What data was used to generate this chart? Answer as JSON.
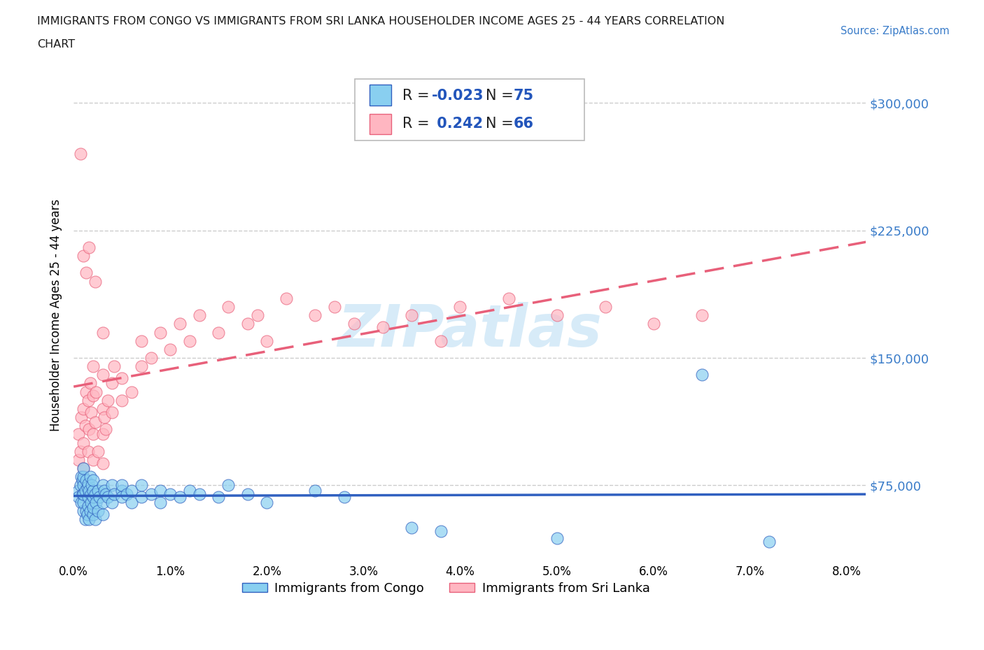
{
  "title_line1": "IMMIGRANTS FROM CONGO VS IMMIGRANTS FROM SRI LANKA HOUSEHOLDER INCOME AGES 25 - 44 YEARS CORRELATION",
  "title_line2": "CHART",
  "source": "Source: ZipAtlas.com",
  "ylabel": "Householder Income Ages 25 - 44 years",
  "xlim": [
    0.0,
    0.082
  ],
  "ylim": [
    30000,
    320000
  ],
  "yticks": [
    75000,
    150000,
    225000,
    300000
  ],
  "ytick_labels": [
    "$75,000",
    "$150,000",
    "$225,000",
    "$300,000"
  ],
  "xticks": [
    0.0,
    0.01,
    0.02,
    0.03,
    0.04,
    0.05,
    0.06,
    0.07,
    0.08
  ],
  "xtick_labels": [
    "0.0%",
    "1.0%",
    "2.0%",
    "3.0%",
    "4.0%",
    "5.0%",
    "6.0%",
    "7.0%",
    "8.0%"
  ],
  "color_congo": "#89CFF0",
  "color_srilanka": "#FFB6C1",
  "color_trend_congo": "#3060C0",
  "color_trend_srilanka": "#E8607A",
  "R_congo": -0.023,
  "N_congo": 75,
  "R_srilanka": 0.242,
  "N_srilanka": 66,
  "legend_label_congo": "Immigrants from Congo",
  "legend_label_srilanka": "Immigrants from Sri Lanka",
  "watermark": "ZIPatlas",
  "grid_color": "#cccccc",
  "congo_x": [
    0.0005,
    0.0005,
    0.0007,
    0.0008,
    0.0008,
    0.0009,
    0.0009,
    0.001,
    0.001,
    0.001,
    0.001,
    0.001,
    0.001,
    0.0012,
    0.0012,
    0.0013,
    0.0013,
    0.0014,
    0.0014,
    0.0015,
    0.0015,
    0.0015,
    0.0016,
    0.0016,
    0.0017,
    0.0017,
    0.0018,
    0.0018,
    0.0019,
    0.002,
    0.002,
    0.002,
    0.002,
    0.002,
    0.0022,
    0.0022,
    0.0023,
    0.0025,
    0.0025,
    0.0027,
    0.003,
    0.003,
    0.003,
    0.0032,
    0.0033,
    0.0035,
    0.004,
    0.004,
    0.0042,
    0.005,
    0.005,
    0.005,
    0.0055,
    0.006,
    0.006,
    0.007,
    0.007,
    0.008,
    0.009,
    0.009,
    0.01,
    0.011,
    0.012,
    0.013,
    0.015,
    0.016,
    0.018,
    0.02,
    0.025,
    0.028,
    0.035,
    0.038,
    0.05,
    0.065,
    0.072
  ],
  "congo_y": [
    72000,
    68000,
    75000,
    80000,
    65000,
    70000,
    78000,
    60000,
    65000,
    70000,
    75000,
    80000,
    85000,
    55000,
    72000,
    60000,
    78000,
    58000,
    74000,
    63000,
    76000,
    68000,
    55000,
    72000,
    60000,
    80000,
    65000,
    70000,
    75000,
    58000,
    62000,
    68000,
    72000,
    78000,
    55000,
    70000,
    65000,
    60000,
    72000,
    68000,
    75000,
    58000,
    65000,
    72000,
    70000,
    68000,
    65000,
    75000,
    70000,
    72000,
    68000,
    75000,
    70000,
    65000,
    72000,
    68000,
    75000,
    70000,
    65000,
    72000,
    70000,
    68000,
    72000,
    70000,
    68000,
    75000,
    70000,
    65000,
    72000,
    68000,
    50000,
    48000,
    44000,
    140000,
    42000
  ],
  "srilanka_x": [
    0.0005,
    0.0005,
    0.0007,
    0.0008,
    0.001,
    0.001,
    0.001,
    0.0012,
    0.0013,
    0.0015,
    0.0015,
    0.0016,
    0.0017,
    0.0018,
    0.002,
    0.002,
    0.002,
    0.002,
    0.0022,
    0.0023,
    0.0025,
    0.003,
    0.003,
    0.003,
    0.003,
    0.0032,
    0.0033,
    0.0035,
    0.004,
    0.004,
    0.0042,
    0.005,
    0.005,
    0.006,
    0.007,
    0.007,
    0.008,
    0.009,
    0.01,
    0.011,
    0.012,
    0.013,
    0.015,
    0.016,
    0.018,
    0.019,
    0.02,
    0.022,
    0.025,
    0.027,
    0.029,
    0.032,
    0.035,
    0.038,
    0.04,
    0.045,
    0.05,
    0.055,
    0.06,
    0.065,
    0.0007,
    0.001,
    0.0013,
    0.0016,
    0.0022,
    0.003
  ],
  "srilanka_y": [
    90000,
    105000,
    95000,
    115000,
    85000,
    100000,
    120000,
    110000,
    130000,
    95000,
    125000,
    108000,
    135000,
    118000,
    90000,
    105000,
    128000,
    145000,
    112000,
    130000,
    95000,
    88000,
    105000,
    120000,
    140000,
    115000,
    108000,
    125000,
    135000,
    118000,
    145000,
    125000,
    138000,
    130000,
    145000,
    160000,
    150000,
    165000,
    155000,
    170000,
    160000,
    175000,
    165000,
    180000,
    170000,
    175000,
    160000,
    185000,
    175000,
    180000,
    170000,
    168000,
    175000,
    160000,
    180000,
    185000,
    175000,
    180000,
    170000,
    175000,
    270000,
    210000,
    200000,
    215000,
    195000,
    165000
  ]
}
